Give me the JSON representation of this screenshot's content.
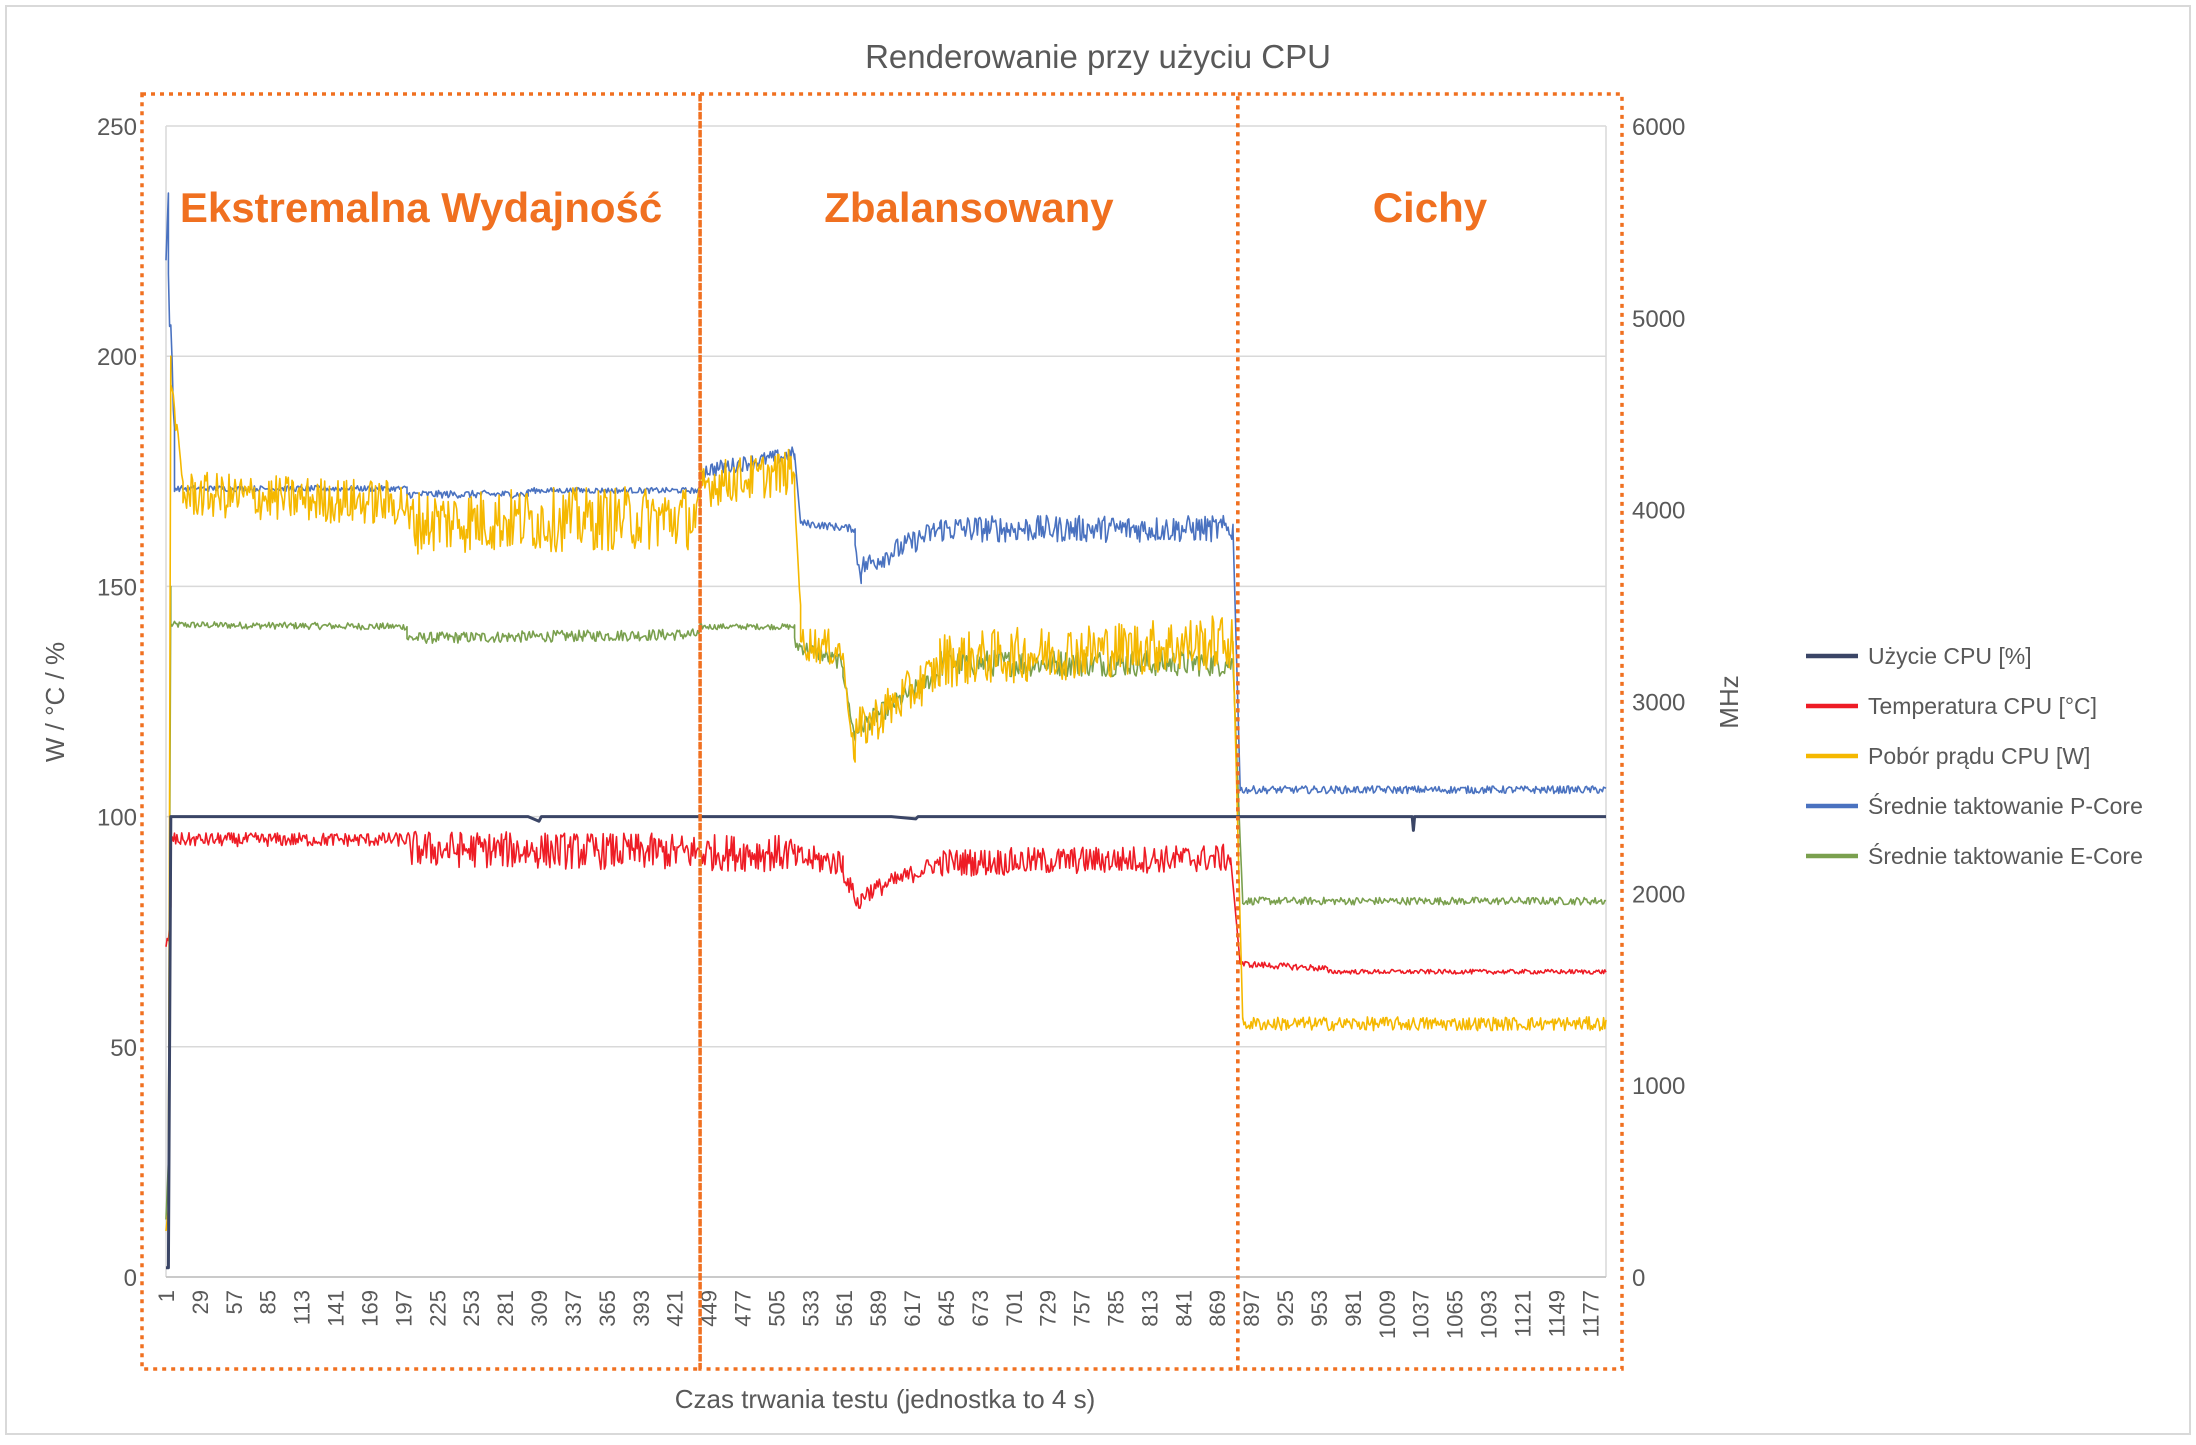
{
  "chart_data": {
    "type": "line",
    "title": "Renderowanie przy użyciu CPU",
    "xlabel": "Czas trwania testu (jednostka to 4 s)",
    "ylabel_left": "W / °C / %",
    "ylabel_right": "MHz",
    "ylim_left": [
      0,
      250
    ],
    "ylim_right": [
      0,
      6000
    ],
    "yticks_left": [
      "0",
      "50",
      "100",
      "150",
      "200",
      "250"
    ],
    "yticks_right": [
      "0",
      "1000",
      "2000",
      "3000",
      "4000",
      "5000",
      "6000"
    ],
    "x_range": [
      1,
      1190
    ],
    "x_ticks": [
      "1",
      "29",
      "57",
      "85",
      "113",
      "141",
      "169",
      "197",
      "225",
      "253",
      "281",
      "309",
      "337",
      "365",
      "393",
      "421",
      "449",
      "477",
      "505",
      "533",
      "561",
      "589",
      "617",
      "645",
      "673",
      "701",
      "729",
      "757",
      "785",
      "813",
      "841",
      "869",
      "897",
      "925",
      "953",
      "981",
      "1009",
      "1037",
      "1065",
      "1093",
      "1121",
      "1149",
      "1177"
    ],
    "grid": true,
    "legend_position": "right",
    "colors": {
      "usage": "#3a4566",
      "temp": "#ee1c25",
      "power": "#f5b800",
      "pcore": "#4a72c0",
      "ecore": "#7aa04e",
      "region": "#f07020",
      "grid": "#d9d9d9",
      "axis_text": "#595959"
    },
    "regions": [
      {
        "label": "Ekstremalna Wydajność",
        "x_start": 1,
        "x_end": 442
      },
      {
        "label": "Zbalansowany",
        "x_start": 442,
        "x_end": 886
      },
      {
        "label": "Cichy",
        "x_start": 886,
        "x_end": 1190
      }
    ],
    "series": [
      {
        "name": "Użycie CPU [%]",
        "key": "usage",
        "axis": "left",
        "points": [
          [
            1,
            2
          ],
          [
            3,
            2
          ],
          [
            5,
            100
          ],
          [
            100,
            100
          ],
          [
            200,
            100
          ],
          [
            300,
            100
          ],
          [
            309,
            99
          ],
          [
            311,
            100
          ],
          [
            400,
            100
          ],
          [
            600,
            100
          ],
          [
            620,
            99.5
          ],
          [
            622,
            100
          ],
          [
            800,
            100
          ],
          [
            1030,
            100
          ],
          [
            1031,
            97
          ],
          [
            1032,
            100
          ],
          [
            1190,
            100
          ]
        ]
      },
      {
        "name": "Temperatura CPU [°C]",
        "key": "temp",
        "axis": "left",
        "segments": [
          {
            "x0": 1,
            "x1": 5,
            "y0": 70,
            "y1": 78,
            "noise": 3
          },
          {
            "x0": 5,
            "x1": 200,
            "y0": 95,
            "y1": 95,
            "noise": 1.5
          },
          {
            "x0": 200,
            "x1": 520,
            "y0": 93,
            "y1": 92,
            "noise": 4
          },
          {
            "x0": 520,
            "x1": 560,
            "y0": 91,
            "y1": 90,
            "noise": 3
          },
          {
            "x0": 560,
            "x1": 575,
            "y0": 88,
            "y1": 80,
            "noise": 2
          },
          {
            "x0": 575,
            "x1": 640,
            "y0": 83,
            "y1": 90,
            "noise": 2
          },
          {
            "x0": 640,
            "x1": 880,
            "y0": 90,
            "y1": 91,
            "noise": 3
          },
          {
            "x0": 880,
            "x1": 888,
            "y0": 91,
            "y1": 68,
            "noise": 0
          },
          {
            "x0": 888,
            "x1": 960,
            "y0": 68,
            "y1": 67,
            "noise": 0.7
          },
          {
            "x0": 960,
            "x1": 1190,
            "y0": 66.3,
            "y1": 66.3,
            "noise": 0.5
          }
        ]
      },
      {
        "name": "Pobór prądu CPU [W]",
        "key": "power",
        "axis": "left",
        "segments": [
          {
            "x0": 1,
            "x1": 3,
            "y0": 10,
            "y1": 15,
            "noise": 0
          },
          {
            "x0": 3,
            "x1": 5,
            "y0": 15,
            "y1": 200,
            "noise": 0
          },
          {
            "x0": 5,
            "x1": 15,
            "y0": 195,
            "y1": 172,
            "noise": 2
          },
          {
            "x0": 15,
            "x1": 200,
            "y0": 170,
            "y1": 168,
            "noise": 5
          },
          {
            "x0": 200,
            "x1": 442,
            "y0": 164,
            "y1": 165,
            "noise": 7
          },
          {
            "x0": 442,
            "x1": 520,
            "y0": 172,
            "y1": 175,
            "noise": 5
          },
          {
            "x0": 520,
            "x1": 525,
            "y0": 170,
            "y1": 145,
            "noise": 1
          },
          {
            "x0": 525,
            "x1": 560,
            "y0": 138,
            "y1": 136,
            "noise": 4
          },
          {
            "x0": 560,
            "x1": 570,
            "y0": 134,
            "y1": 112,
            "noise": 2
          },
          {
            "x0": 570,
            "x1": 640,
            "y0": 118,
            "y1": 132,
            "noise": 5
          },
          {
            "x0": 640,
            "x1": 882,
            "y0": 134,
            "y1": 138,
            "noise": 6
          },
          {
            "x0": 882,
            "x1": 890,
            "y0": 138,
            "y1": 56,
            "noise": 0
          },
          {
            "x0": 890,
            "x1": 1190,
            "y0": 55,
            "y1": 55,
            "noise": 1.5
          }
        ]
      },
      {
        "name": "Średnie taktowanie P-Core",
        "key": "pcore",
        "axis": "right",
        "segments": [
          {
            "x0": 1,
            "x1": 3,
            "y0": 5300,
            "y1": 5650,
            "noise": 0
          },
          {
            "x0": 3,
            "x1": 8,
            "y0": 5200,
            "y1": 4400,
            "noise": 100
          },
          {
            "x0": 8,
            "x1": 200,
            "y0": 4110,
            "y1": 4110,
            "noise": 15
          },
          {
            "x0": 200,
            "x1": 300,
            "y0": 4080,
            "y1": 4080,
            "noise": 20
          },
          {
            "x0": 300,
            "x1": 442,
            "y0": 4100,
            "y1": 4100,
            "noise": 15
          },
          {
            "x0": 442,
            "x1": 520,
            "y0": 4200,
            "y1": 4290,
            "noise": 40
          },
          {
            "x0": 520,
            "x1": 525,
            "y0": 4290,
            "y1": 3930,
            "noise": 0
          },
          {
            "x0": 525,
            "x1": 570,
            "y0": 3930,
            "y1": 3900,
            "noise": 20
          },
          {
            "x0": 570,
            "x1": 575,
            "y0": 3800,
            "y1": 3650,
            "noise": 40
          },
          {
            "x0": 575,
            "x1": 640,
            "y0": 3700,
            "y1": 3900,
            "noise": 60
          },
          {
            "x0": 640,
            "x1": 882,
            "y0": 3900,
            "y1": 3900,
            "noise": 70
          },
          {
            "x0": 882,
            "x1": 888,
            "y0": 3900,
            "y1": 2540,
            "noise": 0
          },
          {
            "x0": 888,
            "x1": 1190,
            "y0": 2540,
            "y1": 2540,
            "noise": 20
          }
        ]
      },
      {
        "name": "Średnie taktowanie E-Core",
        "key": "ecore",
        "axis": "right",
        "segments": [
          {
            "x0": 1,
            "x1": 3,
            "y0": 300,
            "y1": 600,
            "noise": 0
          },
          {
            "x0": 3,
            "x1": 5,
            "y0": 600,
            "y1": 3600,
            "noise": 0
          },
          {
            "x0": 5,
            "x1": 200,
            "y0": 3400,
            "y1": 3390,
            "noise": 18
          },
          {
            "x0": 200,
            "x1": 442,
            "y0": 3330,
            "y1": 3350,
            "noise": 30
          },
          {
            "x0": 442,
            "x1": 520,
            "y0": 3390,
            "y1": 3390,
            "noise": 15
          },
          {
            "x0": 520,
            "x1": 560,
            "y0": 3300,
            "y1": 3200,
            "noise": 40
          },
          {
            "x0": 560,
            "x1": 570,
            "y0": 3150,
            "y1": 2800,
            "noise": 30
          },
          {
            "x0": 570,
            "x1": 640,
            "y0": 2850,
            "y1": 3150,
            "noise": 50
          },
          {
            "x0": 640,
            "x1": 882,
            "y0": 3200,
            "y1": 3200,
            "noise": 70
          },
          {
            "x0": 882,
            "x1": 890,
            "y0": 3200,
            "y1": 1960,
            "noise": 0
          },
          {
            "x0": 890,
            "x1": 1190,
            "y0": 1960,
            "y1": 1960,
            "noise": 20
          }
        ]
      }
    ]
  }
}
